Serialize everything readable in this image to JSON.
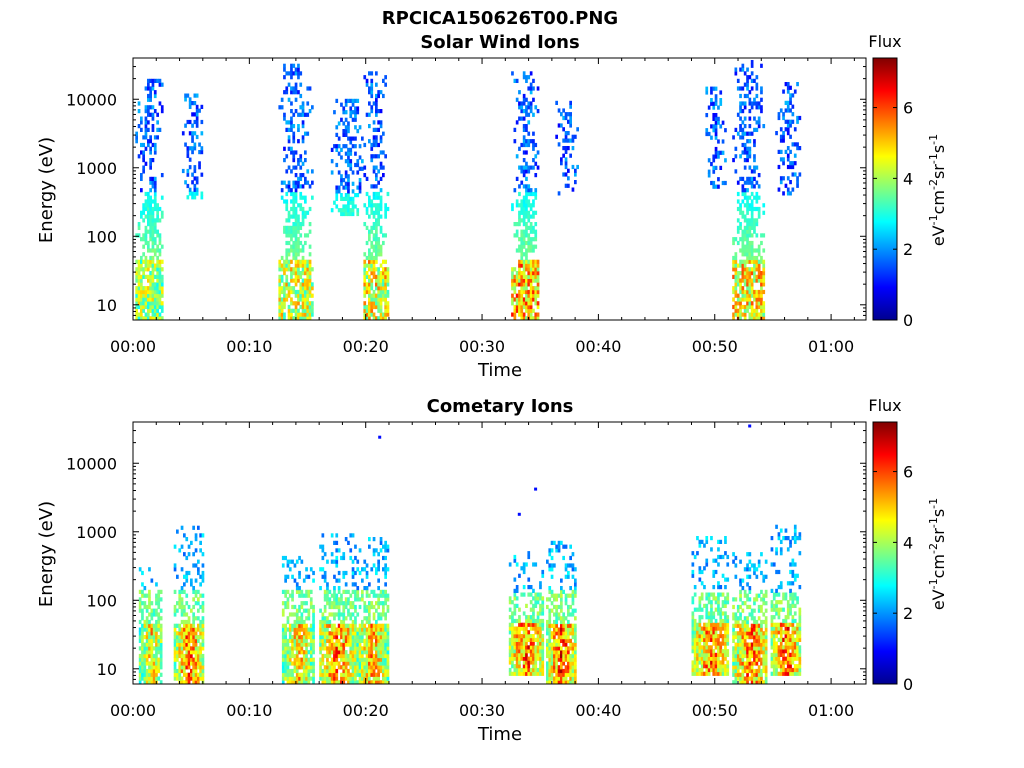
{
  "figure_title": "RPCICA150626T00.PNG",
  "chart_data": [
    {
      "type": "heatmap",
      "title": "Solar Wind Ions",
      "xlabel": "Time",
      "ylabel": "Energy (eV)",
      "yscale": "log",
      "xlim_min": [
        0,
        63
      ],
      "ylim_eV": [
        6,
        40000
      ],
      "x_ticks": [
        "00:00",
        "00:10",
        "00:20",
        "00:30",
        "00:40",
        "00:50",
        "01:00"
      ],
      "x_tick_minutes": [
        0,
        10,
        20,
        30,
        40,
        50,
        60
      ],
      "y_ticks": [
        "10",
        "100",
        "1000",
        "10000"
      ],
      "y_tick_values": [
        10,
        100,
        1000,
        10000
      ],
      "colorbar": {
        "title": "Flux",
        "label": "eV-1cm-2sr-1s-1",
        "range": [
          0,
          7.4
        ],
        "ticks": [
          "0",
          "2",
          "4",
          "6"
        ],
        "tick_values": [
          0,
          2,
          4,
          6
        ],
        "colormap": "jet"
      },
      "bursts": [
        {
          "t_min": 0.2,
          "t_max": 2.6,
          "e_min": 6,
          "e_max": 18000,
          "peak_flux": 5.0
        },
        {
          "t_min": 4.2,
          "t_max": 6.0,
          "e_min": 350,
          "e_max": 12000,
          "peak_flux": 2.2
        },
        {
          "t_min": 12.5,
          "t_max": 15.3,
          "e_min": 6,
          "e_max": 30000,
          "peak_flux": 5.5
        },
        {
          "t_min": 17.0,
          "t_max": 19.8,
          "e_min": 200,
          "e_max": 9000,
          "peak_flux": 2.0
        },
        {
          "t_min": 19.8,
          "t_max": 21.8,
          "e_min": 6,
          "e_max": 25000,
          "peak_flux": 5.8
        },
        {
          "t_min": 32.5,
          "t_max": 34.9,
          "e_min": 6,
          "e_max": 25000,
          "peak_flux": 6.5
        },
        {
          "t_min": 36.3,
          "t_max": 38.2,
          "e_min": 400,
          "e_max": 9000,
          "peak_flux": 2.0
        },
        {
          "t_min": 49.0,
          "t_max": 51.0,
          "e_min": 500,
          "e_max": 15000,
          "peak_flux": 2.0
        },
        {
          "t_min": 51.5,
          "t_max": 54.2,
          "e_min": 6,
          "e_max": 35000,
          "peak_flux": 6.0
        },
        {
          "t_min": 55.2,
          "t_max": 57.3,
          "e_min": 400,
          "e_max": 16000,
          "peak_flux": 2.0
        }
      ]
    },
    {
      "type": "heatmap",
      "title": "Cometary Ions",
      "xlabel": "Time",
      "ylabel": "Energy (eV)",
      "yscale": "log",
      "xlim_min": [
        0,
        63
      ],
      "ylim_eV": [
        6,
        40000
      ],
      "x_ticks": [
        "00:00",
        "00:10",
        "00:20",
        "00:30",
        "00:40",
        "00:50",
        "01:00"
      ],
      "x_tick_minutes": [
        0,
        10,
        20,
        30,
        40,
        50,
        60
      ],
      "y_ticks": [
        "10",
        "100",
        "1000",
        "10000"
      ],
      "y_tick_values": [
        10,
        100,
        1000,
        10000
      ],
      "colorbar": {
        "title": "Flux",
        "label": "eV-1cm-2sr-1s-1",
        "range": [
          0,
          7.4
        ],
        "ticks": [
          "0",
          "2",
          "4",
          "6"
        ],
        "tick_values": [
          0,
          2,
          4,
          6
        ],
        "colormap": "jet"
      },
      "bursts": [
        {
          "t_min": 0.5,
          "t_max": 2.5,
          "e_min": 6,
          "e_max": 280,
          "peak_flux": 6.0
        },
        {
          "t_min": 3.5,
          "t_max": 6.0,
          "e_min": 6,
          "e_max": 1200,
          "peak_flux": 7.0
        },
        {
          "t_min": 12.8,
          "t_max": 15.5,
          "e_min": 6,
          "e_max": 400,
          "peak_flux": 6.2
        },
        {
          "t_min": 16.0,
          "t_max": 19.0,
          "e_min": 6,
          "e_max": 900,
          "peak_flux": 7.0
        },
        {
          "t_min": 19.2,
          "t_max": 21.8,
          "e_min": 6,
          "e_max": 800,
          "peak_flux": 6.5
        },
        {
          "t_min": 32.3,
          "t_max": 35.2,
          "e_min": 8,
          "e_max": 500,
          "peak_flux": 7.2
        },
        {
          "t_min": 35.5,
          "t_max": 38.0,
          "e_min": 6,
          "e_max": 700,
          "peak_flux": 7.3
        },
        {
          "t_min": 48.0,
          "t_max": 51.2,
          "e_min": 8,
          "e_max": 800,
          "peak_flux": 7.0
        },
        {
          "t_min": 51.5,
          "t_max": 54.5,
          "e_min": 6,
          "e_max": 450,
          "peak_flux": 7.0
        },
        {
          "t_min": 54.8,
          "t_max": 57.3,
          "e_min": 8,
          "e_max": 1300,
          "peak_flux": 7.2
        }
      ],
      "isolated_points": [
        {
          "t": 21.2,
          "e": 24000
        },
        {
          "t": 34.6,
          "e": 4200
        },
        {
          "t": 33.2,
          "e": 1800
        },
        {
          "t": 53.0,
          "e": 35000
        }
      ]
    }
  ]
}
